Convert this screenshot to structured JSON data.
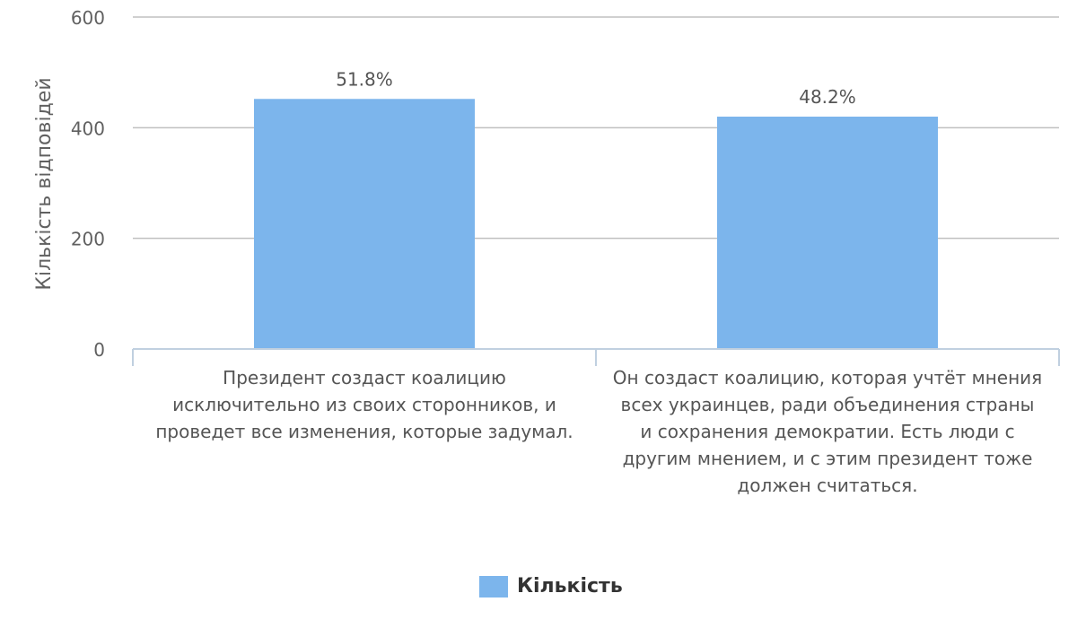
{
  "chart_data": {
    "type": "bar",
    "categories": [
      "Президент создаст коалицию исключительно из своих сторонников, и проведет все изменения, которые задумал.",
      "Он создаст коалицию, которая учтёт мнения всех украинцев, ради объединения страны и сохранения демократии. Есть люди с другим мнением, и с этим президент тоже должен считаться."
    ],
    "series": [
      {
        "name": "Кількість",
        "values": [
          452,
          420
        ],
        "data_labels": [
          "51.8%",
          "48.2%"
        ]
      }
    ],
    "title": "",
    "xlabel": "",
    "ylabel": "Кількість відповідей",
    "ylim": [
      0,
      600
    ],
    "yticks": [
      0,
      200,
      400,
      600
    ],
    "grid": true,
    "legend_position": "bottom-center",
    "colors": {
      "bar": "#7cb5ec",
      "grid": "#c0c0c0",
      "axis": "#c0d0e0",
      "text": "#606060"
    }
  }
}
